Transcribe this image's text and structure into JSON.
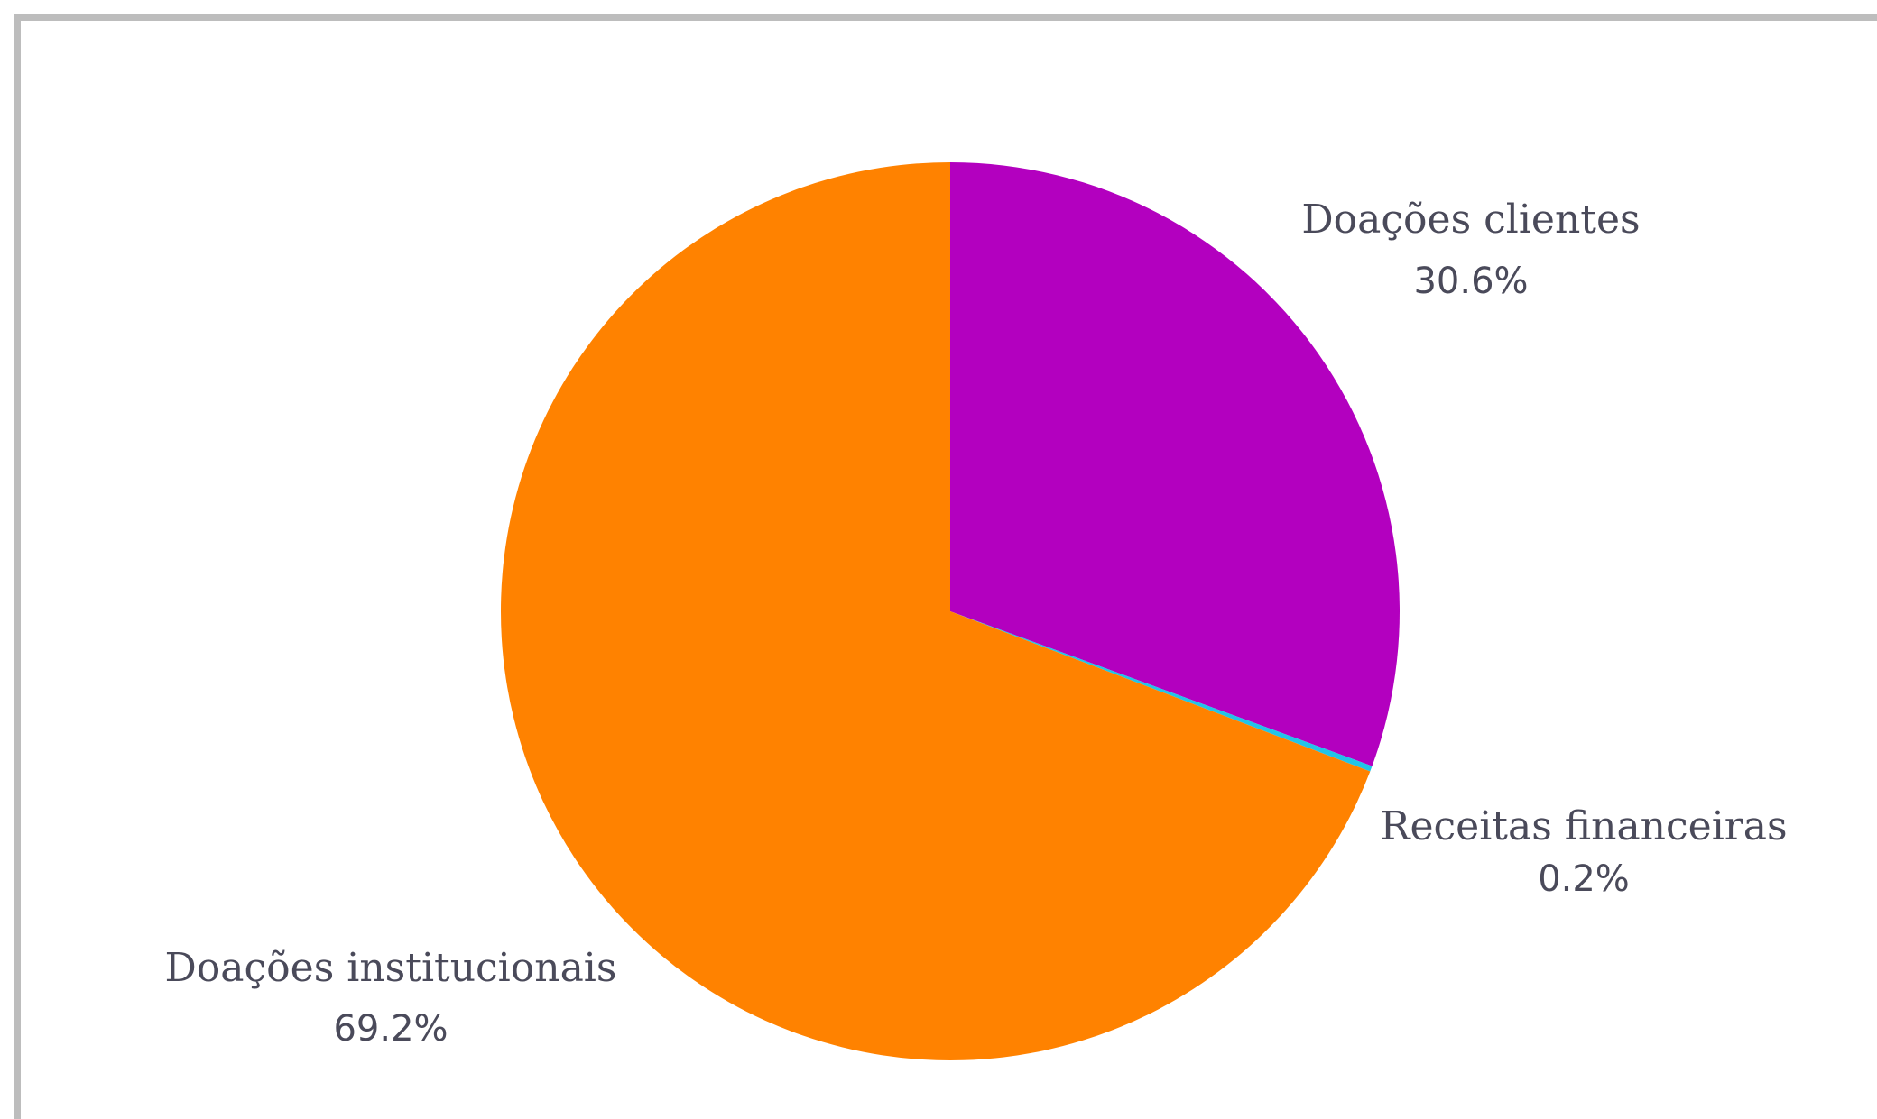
{
  "chart_data": {
    "type": "pie",
    "title": "",
    "start_angle": "12 o'clock, clockwise",
    "slices": [
      {
        "label": "Doações clientes",
        "value": 30.6,
        "value_label": "30.6%",
        "color": "#b300bf"
      },
      {
        "label": "Receitas financeiras",
        "value": 0.2,
        "value_label": "0.2%",
        "color": "#22c4e8"
      },
      {
        "label": "Doações institucionais",
        "value": 69.2,
        "value_label": "69.2%",
        "color": "#ff8200"
      }
    ]
  },
  "colors": {
    "label_text": "#4a4a5a",
    "frame": "#bdbdbd",
    "background": "#ffffff"
  }
}
